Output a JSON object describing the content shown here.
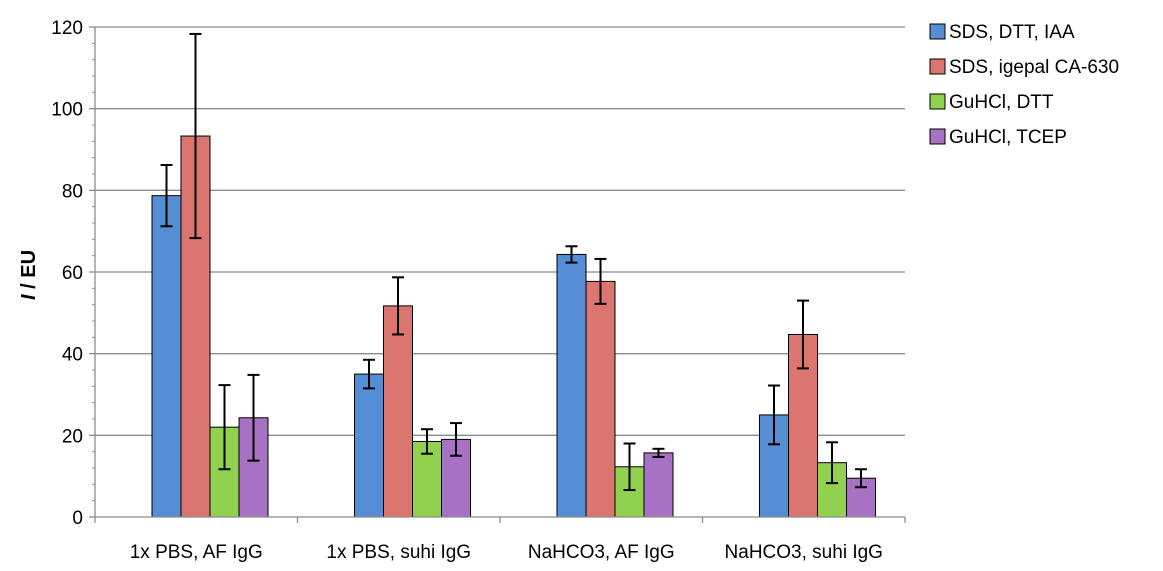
{
  "chart_data": {
    "type": "bar",
    "categories": [
      "1x PBS, AF IgG",
      "1x PBS, suhi IgG",
      "NaHCO3, AF IgG",
      "NaHCO3, suhi IgG"
    ],
    "series": [
      {
        "name": "SDS, DTT, IAA",
        "color": "#558ed5",
        "values": [
          78.7,
          35.0,
          64.3,
          25.0
        ],
        "errors": [
          7.5,
          3.5,
          2.0,
          7.2
        ]
      },
      {
        "name": "SDS, igepal CA-630",
        "color": "#db7570",
        "values": [
          93.3,
          51.7,
          57.7,
          44.7
        ],
        "errors": [
          25.0,
          7.0,
          5.5,
          8.3
        ]
      },
      {
        "name": "GuHCl, DTT",
        "color": "#92d050",
        "values": [
          22.0,
          18.5,
          12.3,
          13.3
        ],
        "errors": [
          10.3,
          3.0,
          5.7,
          5.0
        ]
      },
      {
        "name": "GuHCl, TCEP",
        "color": "#a772c3",
        "values": [
          24.3,
          19.0,
          15.7,
          9.5
        ],
        "errors": [
          10.5,
          4.0,
          1.0,
          2.2
        ]
      }
    ],
    "ylabel_italic": "I",
    "ylabel_rest": " / EU",
    "ylim": [
      0,
      120
    ],
    "yticks": [
      0,
      20,
      40,
      60,
      80,
      100,
      120
    ],
    "grid": true,
    "legend": "top-right"
  }
}
